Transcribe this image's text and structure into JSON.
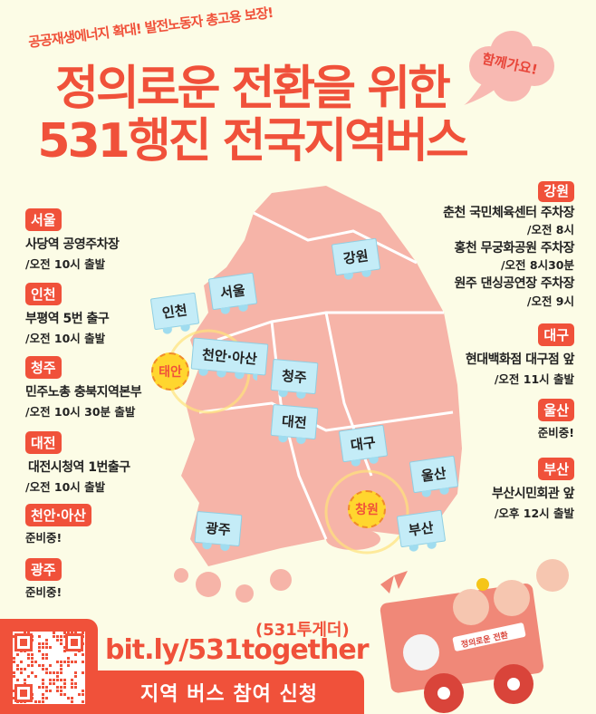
{
  "header": {
    "subtitle": "공공재생에너지 확대! 발전노동자 총고용 보장!",
    "title_line1": "정의로운 전환을 위한",
    "title_line2": "531행진 전국지역버스",
    "cloud_text": "함께가요!"
  },
  "left_regions": [
    {
      "name": "서울",
      "place": "사당역 공영주차장",
      "time": "/오전 10시 출발"
    },
    {
      "name": "인천",
      "place": "부평역 5번 출구",
      "time": "/오전 10시 출발"
    },
    {
      "name": "청주",
      "place": "민주노총 충북지역본부",
      "time": "/오전 10시 30분 출발"
    },
    {
      "name": "대전",
      "place": "대전시청역 1번출구",
      "time": "/오전 10시 출발"
    },
    {
      "name": "천안·아산",
      "place": "준비중!"
    },
    {
      "name": "광주",
      "place": "준비중!"
    }
  ],
  "right_regions": [
    {
      "name": "강원",
      "stops": [
        {
          "place": "춘천 국민체육센터 주차장",
          "time": "/오전 8시"
        },
        {
          "place": "홍천 무궁화공원 주차장",
          "time": "/오전 8시30분"
        },
        {
          "place": "원주 댄싱공연장 주차장",
          "time": "/오전 9시"
        }
      ]
    },
    {
      "name": "대구",
      "place": "현대백화점 대구점 앞",
      "time": "/오전 11시 출발"
    },
    {
      "name": "울산",
      "place": "준비중!"
    },
    {
      "name": "부산",
      "place": "부산시민회관 앞",
      "time": "/오후 12시 출발"
    }
  ],
  "map": {
    "signs": [
      "인천",
      "서울",
      "강원",
      "천안·아산",
      "청주",
      "대전",
      "대구",
      "울산",
      "광주",
      "부산"
    ],
    "badges": [
      "태안",
      "창원"
    ]
  },
  "footer": {
    "nickname": "(531투게더)",
    "url": "bit.ly/531together",
    "cta": "지역 버스 참여 신청",
    "banner": "정의로운 전환"
  },
  "colors": {
    "accent": "#f0513a",
    "background": "#fcfce6",
    "map": "#f6b4a8",
    "sign": "#c4ecf7"
  }
}
